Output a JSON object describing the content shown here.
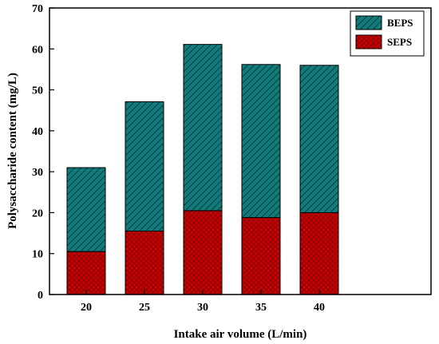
{
  "chart_data": {
    "type": "bar",
    "stacked": true,
    "categories": [
      "20",
      "25",
      "30",
      "35",
      "40"
    ],
    "series": [
      {
        "name": "SEPS",
        "values": [
          10.5,
          15.5,
          20.5,
          18.8,
          20.0
        ],
        "color": "#cc0000",
        "pattern": "cross-hatch"
      },
      {
        "name": "BEPS",
        "values": [
          20.5,
          31.6,
          40.6,
          37.4,
          36.0
        ],
        "color": "#127c7c",
        "pattern": "diagonal-hatch"
      }
    ],
    "totals": [
      31.0,
      47.1,
      61.1,
      56.2,
      56.0
    ],
    "xlabel": "Intake air volume (L/min)",
    "ylabel": "Polysaccharide content (mg/L)",
    "ylim": [
      0,
      70
    ],
    "yticks": [
      0,
      10,
      20,
      30,
      40,
      50,
      60,
      70
    ],
    "legend_position": "top-right",
    "legend_order": [
      "BEPS",
      "SEPS"
    ],
    "grid": false
  }
}
